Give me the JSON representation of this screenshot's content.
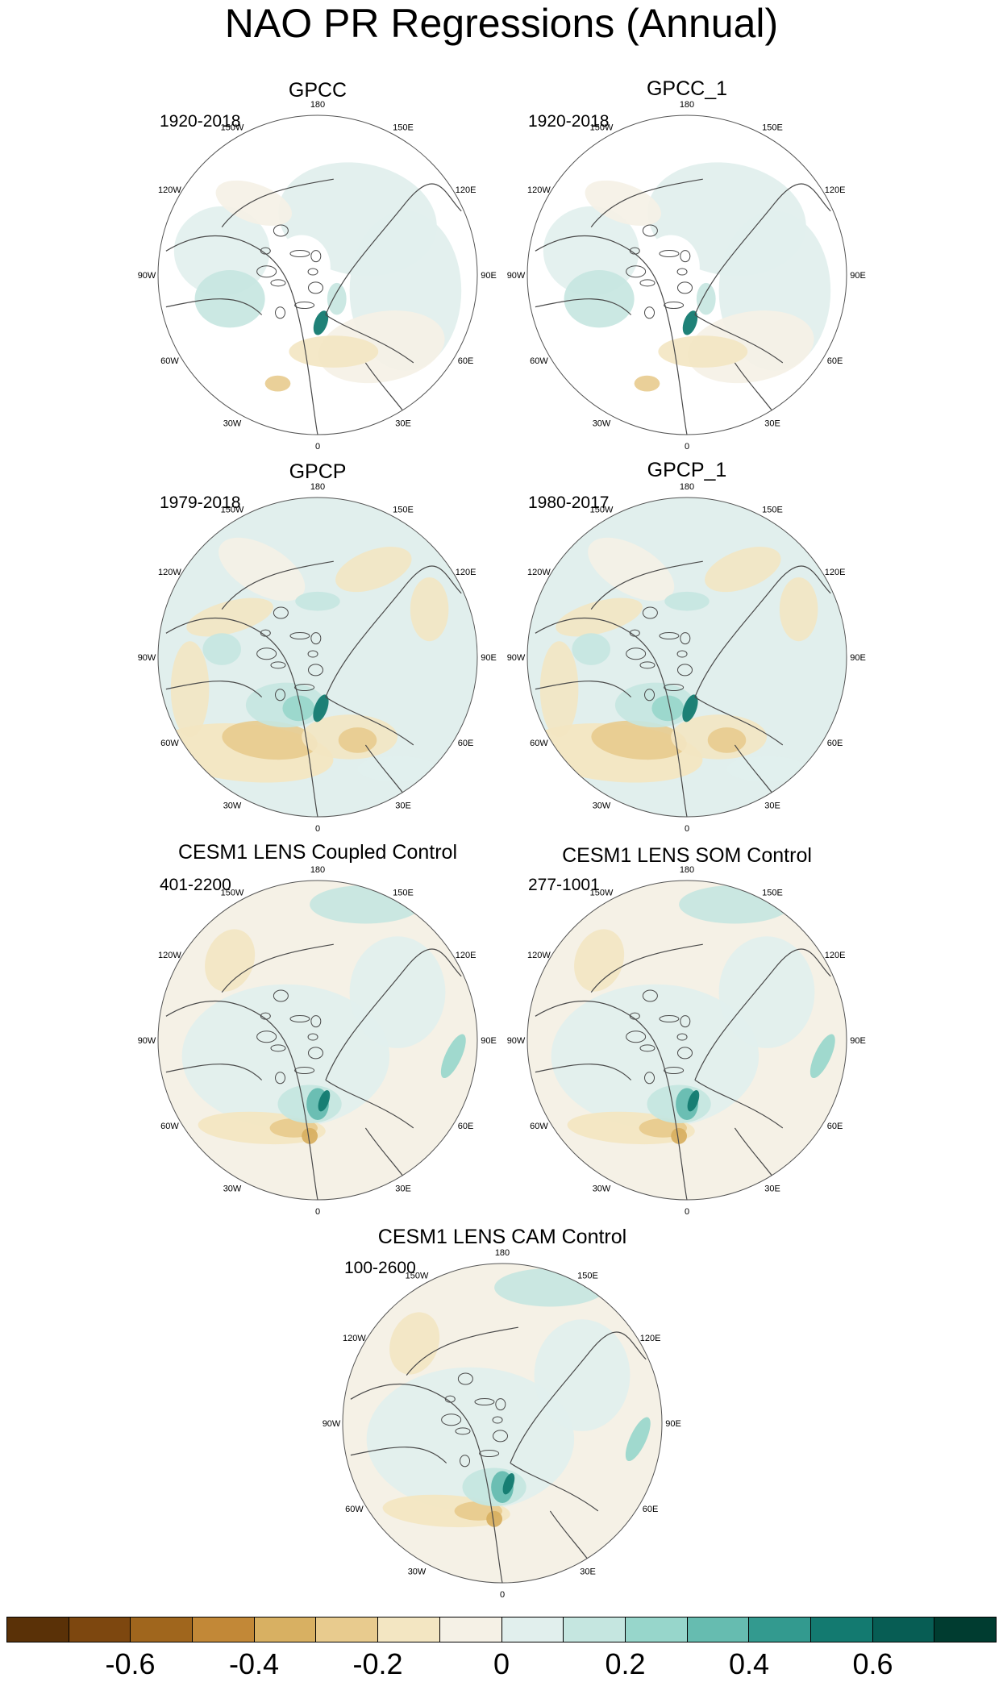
{
  "title": "NAO PR Regressions (Annual)",
  "longitude_labels": [
    "180",
    "150E",
    "120E",
    "90E",
    "60E",
    "30E",
    "0",
    "30W",
    "60W",
    "90W",
    "120W",
    "150W"
  ],
  "panels": [
    {
      "title": "GPCC",
      "period": "1920-2018",
      "style": "gpcc"
    },
    {
      "title": "GPCC_1",
      "period": "1920-2018",
      "style": "gpcc"
    },
    {
      "title": "GPCP",
      "period": "1979-2018",
      "style": "gpcp"
    },
    {
      "title": "GPCP_1",
      "period": "1980-2017",
      "style": "gpcp"
    },
    {
      "title": "CESM1 LENS Coupled Control",
      "period": "401-2200",
      "style": "model"
    },
    {
      "title": "CESM1 LENS SOM Control",
      "period": "277-1001",
      "style": "model"
    },
    {
      "title": "CESM1 LENS CAM Control",
      "period": "100-2600",
      "style": "model"
    }
  ],
  "colorbar": {
    "colors": [
      "#5a3107",
      "#7d470f",
      "#a0661d",
      "#c28837",
      "#d8b062",
      "#e8cb8e",
      "#f3e6c2",
      "#f5f1e6",
      "#e1efed",
      "#c5e6e0",
      "#97d6cb",
      "#66bcb0",
      "#339a8f",
      "#137a70",
      "#075d54",
      "#003c30"
    ],
    "labels": [
      "-0.6",
      "-0.4",
      "-0.2",
      "0",
      "0.2",
      "0.4",
      "0.6"
    ]
  }
}
